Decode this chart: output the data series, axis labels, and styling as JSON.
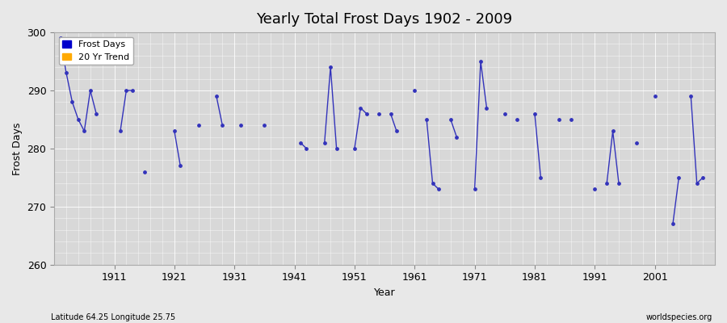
{
  "title": "Yearly Total Frost Days 1902 - 2009",
  "xlabel": "Year",
  "ylabel": "Frost Days",
  "footnote_left": "Latitude 64.25 Longitude 25.75",
  "footnote_right": "worldspecies.org",
  "legend_entries": [
    "Frost Days",
    "20 Yr Trend"
  ],
  "legend_colors": [
    "#0000cc",
    "#ffaa00"
  ],
  "line_color": "#3333bb",
  "bg_color": "#e8e8e8",
  "plot_bg_color": "#d8d8d8",
  "ylim": [
    260,
    300
  ],
  "xlim": [
    1901,
    2011
  ],
  "yticks": [
    260,
    270,
    280,
    290,
    300
  ],
  "xticks": [
    1911,
    1921,
    1931,
    1941,
    1951,
    1961,
    1971,
    1981,
    1991,
    2001
  ],
  "years": [
    1902,
    1903,
    1904,
    1905,
    1906,
    1907,
    1908,
    1912,
    1913,
    1914,
    1916,
    1921,
    1922,
    1925,
    1928,
    1929,
    1932,
    1936,
    1942,
    1943,
    1946,
    1947,
    1948,
    1951,
    1952,
    1953,
    1955,
    1957,
    1958,
    1961,
    1963,
    1964,
    1965,
    1967,
    1968,
    1971,
    1972,
    1973,
    1976,
    1978,
    1981,
    1982,
    1985,
    1987,
    1991,
    1993,
    1994,
    1995,
    1998,
    2001,
    2004,
    2005,
    2007,
    2008,
    2009
  ],
  "values": [
    299,
    293,
    288,
    285,
    283,
    290,
    286,
    283,
    290,
    290,
    276,
    283,
    277,
    284,
    289,
    284,
    284,
    284,
    281,
    280,
    281,
    294,
    280,
    280,
    287,
    286,
    286,
    286,
    283,
    290,
    285,
    274,
    273,
    285,
    282,
    273,
    295,
    287,
    286,
    285,
    286,
    275,
    285,
    285,
    273,
    274,
    283,
    274,
    281,
    289,
    267,
    275,
    289,
    274,
    275
  ]
}
